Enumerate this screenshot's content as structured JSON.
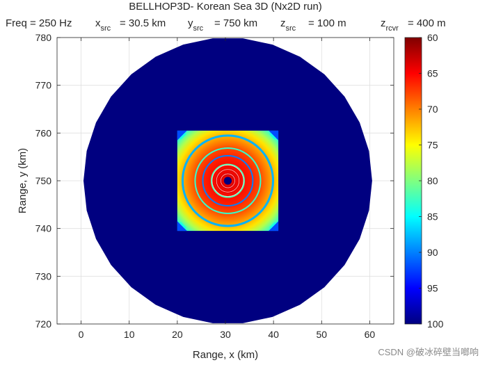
{
  "chart_data": {
    "type": "heatmap",
    "title": "BELLHOP3D- Korean Sea 3D (Nx2D run)",
    "subtitle": {
      "freq": "Freq = 250 Hz",
      "xsrc_pre": "x",
      "xsrc_sub": "src",
      "xsrc_val": "= 30.5 km",
      "ysrc_pre": "y",
      "ysrc_sub": "src",
      "ysrc_val": "= 750 km",
      "zsrc_pre": "z",
      "zsrc_sub": "src",
      "zsrc_val": "= 100 m",
      "zrcvr_pre": "z",
      "zrcvr_sub": "rcvr",
      "zrcvr_val": "= 400 m"
    },
    "xlabel": "Range, x (km)",
    "ylabel": "Range, y (km)",
    "xlim": [
      -5,
      65
    ],
    "ylim": [
      720,
      780
    ],
    "xticks": [
      0,
      10,
      20,
      30,
      40,
      50,
      60
    ],
    "yticks": [
      720,
      730,
      740,
      750,
      760,
      770,
      780
    ],
    "grid": true,
    "source": {
      "x": 30.5,
      "y": 750
    },
    "disk": {
      "center_x": 30.5,
      "center_y": 750,
      "radius_km": 30,
      "min_value_fill": 100
    },
    "field_square": {
      "x_range": [
        20,
        41
      ],
      "y_range": [
        739.5,
        760.5
      ]
    },
    "rings": [
      {
        "radius_km": 9.4,
        "value": 88
      },
      {
        "radius_km": 6.8,
        "value": 83
      },
      {
        "radius_km": 5.2,
        "value": 90
      },
      {
        "radius_km": 3.4,
        "value": 82
      }
    ],
    "colorbar": {
      "colormap": "jet",
      "reversed": true,
      "range": [
        60,
        100
      ],
      "ticks": [
        60,
        65,
        70,
        75,
        80,
        85,
        90,
        95,
        100
      ]
    }
  },
  "watermark": "CSDN @破冰碎壁当啷响",
  "colors": {
    "axis": "#262626",
    "grid": "#dfdfdf",
    "watermark": "#8a8a8a"
  }
}
